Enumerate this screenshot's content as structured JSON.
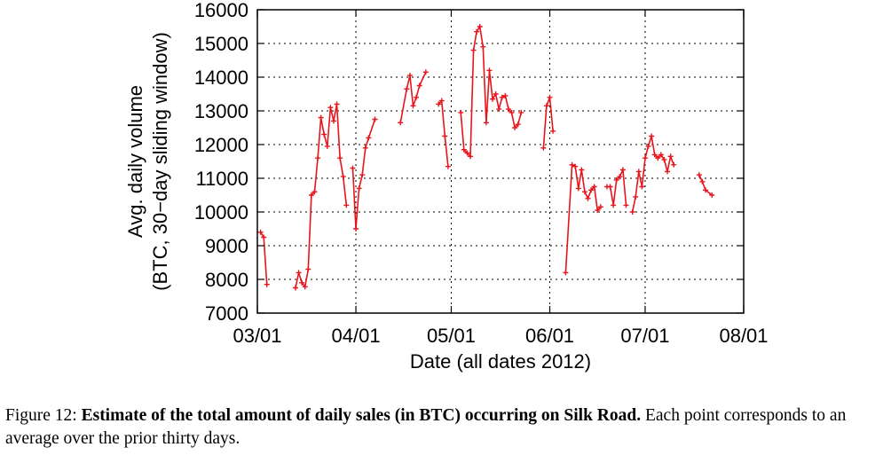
{
  "chart_data": {
    "type": "line",
    "xlabel": "Date (all dates 2012)",
    "ylabel_line1": "Avg. daily volume",
    "ylabel_line2": "(BTC, 30−day sliding window)",
    "x_ticks": [
      "03/01",
      "04/01",
      "05/01",
      "06/01",
      "07/01",
      "08/01"
    ],
    "y_ticks": [
      7000,
      8000,
      9000,
      10000,
      11000,
      12000,
      13000,
      14000,
      15000,
      16000
    ],
    "xlim": [
      "2012-03-01",
      "2012-08-01"
    ],
    "ylim": [
      7000,
      16000
    ],
    "grid": true,
    "line_color": "#e8141b",
    "marker": "plus",
    "series": [
      {
        "segments": [
          [
            [
              "2012-03-02",
              9400
            ],
            [
              "2012-03-03",
              9250
            ],
            [
              "2012-03-04",
              7850
            ]
          ],
          [
            [
              "2012-03-13",
              7750
            ],
            [
              "2012-03-14",
              8200
            ],
            [
              "2012-03-15",
              7900
            ],
            [
              "2012-03-16",
              7780
            ],
            [
              "2012-03-17",
              8300
            ],
            [
              "2012-03-18",
              10500
            ],
            [
              "2012-03-19",
              10600
            ],
            [
              "2012-03-20",
              11600
            ],
            [
              "2012-03-21",
              12800
            ],
            [
              "2012-03-22",
              12300
            ],
            [
              "2012-03-23",
              11950
            ],
            [
              "2012-03-24",
              13100
            ],
            [
              "2012-03-25",
              12700
            ],
            [
              "2012-03-26",
              13200
            ],
            [
              "2012-03-27",
              11600
            ],
            [
              "2012-03-28",
              11050
            ],
            [
              "2012-03-29",
              10200
            ]
          ],
          [
            [
              "2012-03-31",
              11300
            ],
            [
              "2012-04-01",
              9500
            ],
            [
              "2012-04-02",
              10700
            ],
            [
              "2012-04-03",
              11100
            ],
            [
              "2012-04-04",
              11900
            ],
            [
              "2012-04-05",
              12200
            ],
            [
              "2012-04-07",
              12750
            ]
          ],
          [
            [
              "2012-04-15",
              12650
            ],
            [
              "2012-04-17",
              13650
            ],
            [
              "2012-04-18",
              14050
            ],
            [
              "2012-04-19",
              13150
            ],
            [
              "2012-04-20",
              13400
            ],
            [
              "2012-04-21",
              13750
            ],
            [
              "2012-04-23",
              14150
            ]
          ],
          [
            [
              "2012-04-27",
              13200
            ],
            [
              "2012-04-28",
              13300
            ],
            [
              "2012-04-29",
              12250
            ],
            [
              "2012-04-30",
              11350
            ]
          ],
          [
            [
              "2012-05-04",
              12950
            ],
            [
              "2012-05-05",
              11850
            ],
            [
              "2012-05-06",
              11750
            ],
            [
              "2012-05-07",
              11650
            ],
            [
              "2012-05-08",
              14800
            ],
            [
              "2012-05-09",
              15350
            ],
            [
              "2012-05-10",
              15500
            ],
            [
              "2012-05-11",
              14900
            ],
            [
              "2012-05-12",
              12650
            ],
            [
              "2012-05-13",
              14200
            ],
            [
              "2012-05-14",
              13350
            ],
            [
              "2012-05-15",
              13500
            ],
            [
              "2012-05-16",
              13050
            ],
            [
              "2012-05-17",
              13400
            ],
            [
              "2012-05-18",
              13450
            ],
            [
              "2012-05-19",
              13050
            ],
            [
              "2012-05-20",
              12950
            ],
            [
              "2012-05-21",
              12500
            ],
            [
              "2012-05-22",
              12600
            ],
            [
              "2012-05-23",
              12950
            ]
          ],
          [
            [
              "2012-05-30",
              11900
            ],
            [
              "2012-05-31",
              13150
            ],
            [
              "2012-06-01",
              13400
            ],
            [
              "2012-06-02",
              12400
            ]
          ],
          [
            [
              "2012-06-06",
              8200
            ],
            [
              "2012-06-08",
              11400
            ],
            [
              "2012-06-09",
              11350
            ],
            [
              "2012-06-10",
              10700
            ],
            [
              "2012-06-11",
              11250
            ],
            [
              "2012-06-12",
              10600
            ],
            [
              "2012-06-13",
              10400
            ],
            [
              "2012-06-14",
              10650
            ],
            [
              "2012-06-15",
              10750
            ],
            [
              "2012-06-16",
              10050
            ],
            [
              "2012-06-17",
              10150
            ]
          ],
          [
            [
              "2012-06-19",
              10750
            ],
            [
              "2012-06-20",
              10750
            ],
            [
              "2012-06-21",
              10200
            ],
            [
              "2012-06-22",
              10950
            ],
            [
              "2012-06-23",
              11050
            ],
            [
              "2012-06-24",
              11250
            ],
            [
              "2012-06-25",
              10200
            ]
          ],
          [
            [
              "2012-06-27",
              10000
            ],
            [
              "2012-06-28",
              10450
            ],
            [
              "2012-06-29",
              11200
            ],
            [
              "2012-06-30",
              10750
            ],
            [
              "2012-07-01",
              11600
            ],
            [
              "2012-07-02",
              11950
            ],
            [
              "2012-07-03",
              12250
            ],
            [
              "2012-07-04",
              11700
            ],
            [
              "2012-07-05",
              11600
            ],
            [
              "2012-07-06",
              11700
            ],
            [
              "2012-07-07",
              11550
            ],
            [
              "2012-07-08",
              11200
            ],
            [
              "2012-07-09",
              11650
            ],
            [
              "2012-07-10",
              11400
            ]
          ],
          [
            [
              "2012-07-18",
              11100
            ],
            [
              "2012-07-19",
              10900
            ],
            [
              "2012-07-20",
              10650
            ],
            [
              "2012-07-22",
              10500
            ]
          ]
        ]
      }
    ]
  },
  "caption": {
    "prefix": "Figure 12: ",
    "bold": "Estimate of the total amount of daily sales (in BTC) occurring on Silk Road.",
    "rest": " Each point corresponds to an average over the prior thirty days."
  }
}
